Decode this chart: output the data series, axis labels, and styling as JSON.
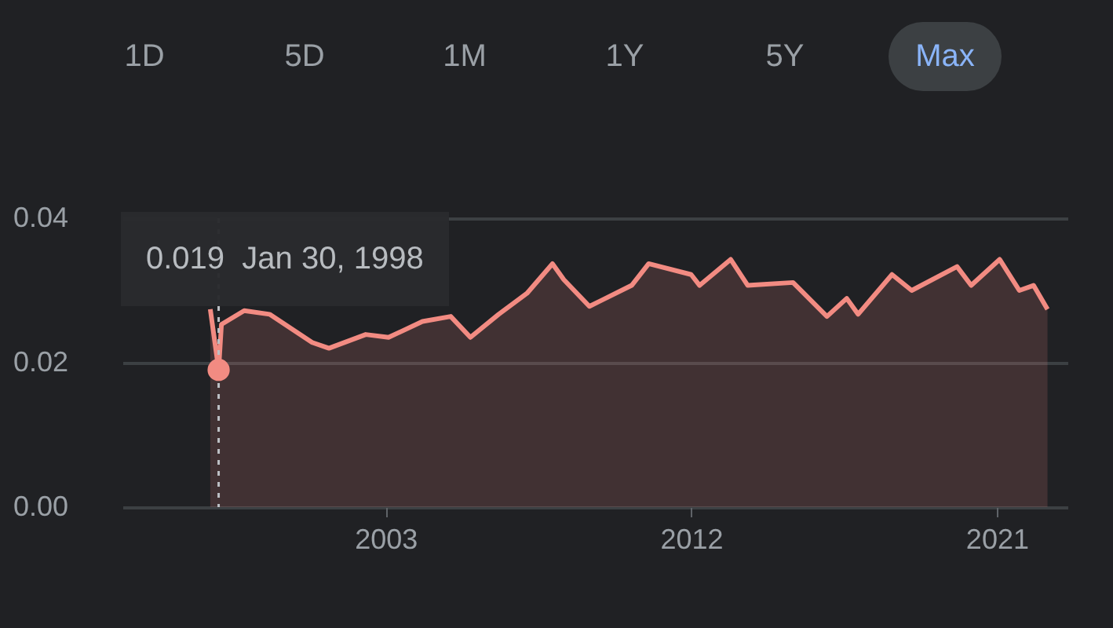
{
  "chart_data": {
    "type": "area",
    "x": [
      "1997-11",
      "1998-01-30",
      "1998-03",
      "1998-11",
      "1999-08",
      "2000-11",
      "2001-05",
      "2002-06",
      "2003-02",
      "2004-02",
      "2004-12",
      "2005-07",
      "2006-05",
      "2007-03",
      "2007-12",
      "2008-04",
      "2009-01",
      "2010-04",
      "2010-10",
      "2012-01",
      "2012-04",
      "2013-03",
      "2013-09",
      "2015-01",
      "2016-01",
      "2016-08",
      "2016-12",
      "2017-12",
      "2018-07",
      "2019-11",
      "2020-04",
      "2021-02",
      "2021-09",
      "2022-02",
      "2022-07"
    ],
    "series": [
      {
        "type": "scatter",
        "marker": "circle",
        "x": [
          "1998-01-30"
        ],
        "color": "#f28b82",
        "values": [
          0.019
        ]
      },
      {
        "color": "#f28b82",
        "values": [
          0.0274,
          0.019,
          0.0253,
          0.0272,
          0.0267,
          0.0228,
          0.022,
          0.0239,
          0.0235,
          0.0257,
          0.0264,
          0.0235,
          0.0267,
          0.0296,
          0.0337,
          0.0315,
          0.0278,
          0.0307,
          0.0337,
          0.0322,
          0.0307,
          0.0343,
          0.0307,
          0.0311,
          0.0264,
          0.0289,
          0.0267,
          0.0322,
          0.03,
          0.0333,
          0.0307,
          0.0343,
          0.03,
          0.0307,
          0.0274
        ]
      }
    ],
    "xlim": [
      "1995-04",
      "2023-02"
    ],
    "xticks": [
      "2003",
      "2012",
      "2021"
    ],
    "ylim": [
      0,
      0.04
    ],
    "yticks": [
      {
        "value": 0,
        "label": "0.00"
      },
      {
        "value": 0.02,
        "label": "0.02"
      },
      {
        "value": 0.04,
        "label": "0.04"
      }
    ],
    "grid": "y",
    "ref_lines": [
      {
        "axis": "x",
        "value": "1998-01-30",
        "label": "0.019  Jan 30, 1998",
        "line_style": "dotted",
        "color": "#bdc1c6"
      }
    ],
    "annotations": [
      "1D",
      "5D",
      "1M",
      "1Y",
      "5Y",
      "Max"
    ]
  }
}
